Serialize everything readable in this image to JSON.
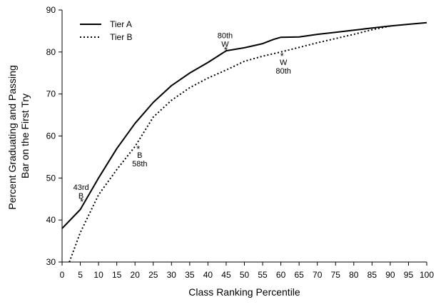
{
  "chart_data": {
    "type": "line",
    "title": "",
    "xlabel": "Class Ranking Percentile",
    "ylabel_lines": [
      "Percent Graduating and Passing",
      "Bar on the First Try"
    ],
    "xlim": [
      0,
      100
    ],
    "ylim": [
      30,
      90
    ],
    "xticks": [
      0,
      5,
      10,
      15,
      20,
      25,
      30,
      35,
      40,
      45,
      50,
      55,
      60,
      65,
      70,
      75,
      80,
      85,
      90,
      95,
      100
    ],
    "yticks": [
      30,
      40,
      50,
      60,
      70,
      80,
      90
    ],
    "grid": false,
    "legend_position": "top-left",
    "series": [
      {
        "name": "Tier A",
        "style": "solid",
        "x": [
          0,
          5,
          10,
          15,
          20,
          25,
          30,
          35,
          40,
          45,
          50,
          55,
          58,
          60,
          65,
          70,
          75,
          80,
          85,
          90,
          95,
          100
        ],
        "y": [
          38,
          42.5,
          50,
          57,
          63,
          68,
          72,
          75,
          77.5,
          80.3,
          81,
          82,
          83,
          83.5,
          83.6,
          84.2,
          84.7,
          85.2,
          85.7,
          86.2,
          86.6,
          87
        ]
      },
      {
        "name": "Tier B",
        "style": "dotted",
        "x": [
          2,
          5,
          10,
          15,
          20,
          25,
          30,
          35,
          40,
          45,
          50,
          55,
          60,
          65,
          70,
          75,
          80,
          85,
          90
        ],
        "y": [
          30,
          37,
          46,
          52,
          57.5,
          64.5,
          68.5,
          71.5,
          73.8,
          75.7,
          77.8,
          79,
          80,
          81.1,
          82.2,
          83.2,
          84.2,
          85.3,
          86.2
        ]
      }
    ],
    "annotations": [
      {
        "marker": "*",
        "x": 5.4,
        "y": 44.6,
        "labels": [
          "43rd",
          "B"
        ],
        "label_side": "above"
      },
      {
        "marker": "*",
        "x": 20.9,
        "y": 57.2,
        "labels": [
          "B",
          "58th"
        ],
        "label_side": "below"
      },
      {
        "marker": "*",
        "x": 44.9,
        "y": 80.7,
        "labels": [
          "80th",
          "W"
        ],
        "label_side": "above"
      },
      {
        "marker": "*",
        "x": 60.3,
        "y": 79.3,
        "labels": [
          "W",
          "80th"
        ],
        "label_side": "below"
      }
    ]
  }
}
